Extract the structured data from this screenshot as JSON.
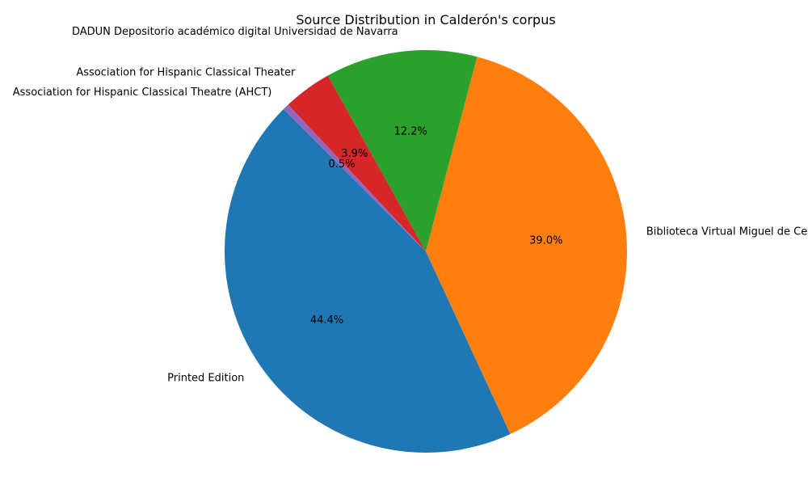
{
  "chart_data": {
    "type": "pie",
    "title": "Source Distribution in Calderón's corpus",
    "slices": [
      {
        "label": "Printed Edition",
        "value": 44.4,
        "pct_label": "44.4%",
        "color": "#1f77b4"
      },
      {
        "label": "Biblioteca Virtual Miguel de Cervantes",
        "value": 39.0,
        "pct_label": "39.0%",
        "color": "#ff7f0e"
      },
      {
        "label": "DADUN Depositorio académico digital Universidad de Navarra",
        "value": 12.2,
        "pct_label": "12.2%",
        "color": "#2ca02c"
      },
      {
        "label": "Association for Hispanic Classical Theater",
        "value": 3.9,
        "pct_label": "3.9%",
        "color": "#d62728"
      },
      {
        "label": "Association for Hispanic Classical Theatre (AHCT)",
        "value": 0.5,
        "pct_label": "0.5%",
        "color": "#9467bd"
      }
    ],
    "start_angle_deg": 135,
    "direction": "counterclockwise",
    "legend": "none"
  }
}
